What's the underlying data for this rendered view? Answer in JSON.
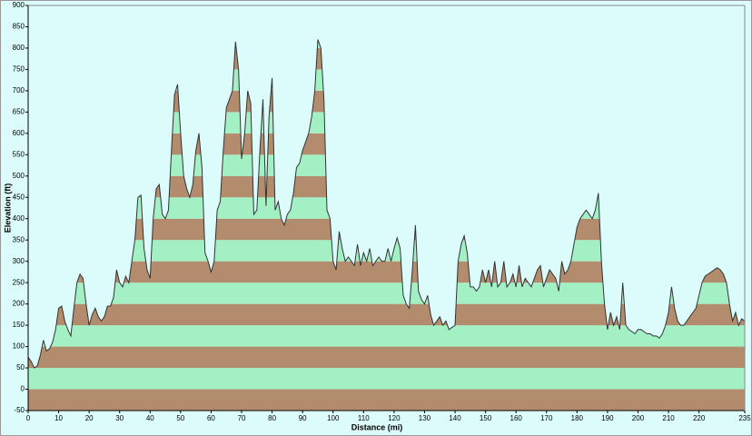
{
  "chart_data": {
    "type": "area",
    "x_label": "Distance  (mi)",
    "y_label": "Elevation (ft)",
    "x": [
      0,
      1,
      2,
      3,
      4,
      5,
      6,
      7,
      8,
      9,
      10,
      11,
      12,
      13,
      14,
      15,
      16,
      17,
      18,
      19,
      20,
      21,
      22,
      23,
      24,
      25,
      26,
      27,
      28,
      29,
      30,
      31,
      32,
      33,
      34,
      35,
      36,
      37,
      38,
      39,
      40,
      41,
      42,
      43,
      44,
      45,
      46,
      47,
      48,
      49,
      50,
      51,
      52,
      53,
      54,
      55,
      56,
      57,
      58,
      59,
      60,
      61,
      62,
      63,
      64,
      65,
      66,
      67,
      68,
      69,
      70,
      71,
      72,
      73,
      74,
      75,
      76,
      77,
      78,
      79,
      80,
      81,
      82,
      83,
      84,
      85,
      86,
      87,
      88,
      89,
      90,
      91,
      92,
      93,
      94,
      95,
      96,
      97,
      98,
      99,
      100,
      101,
      102,
      103,
      104,
      105,
      106,
      107,
      108,
      109,
      110,
      111,
      112,
      113,
      114,
      115,
      116,
      117,
      118,
      119,
      120,
      121,
      122,
      123,
      124,
      125,
      126,
      127,
      128,
      129,
      130,
      131,
      132,
      133,
      134,
      135,
      136,
      137,
      138,
      139,
      140,
      141,
      142,
      143,
      144,
      145,
      146,
      147,
      148,
      149,
      150,
      151,
      152,
      153,
      154,
      155,
      156,
      157,
      158,
      159,
      160,
      161,
      162,
      163,
      164,
      165,
      166,
      167,
      168,
      169,
      170,
      171,
      172,
      173,
      174,
      175,
      176,
      177,
      178,
      179,
      180,
      181,
      182,
      183,
      184,
      185,
      186,
      187,
      188,
      189,
      190,
      191,
      192,
      193,
      194,
      195,
      196,
      197,
      198,
      199,
      200,
      201,
      202,
      203,
      204,
      205,
      206,
      207,
      208,
      209,
      210,
      211,
      212,
      213,
      214,
      215,
      216,
      217,
      218,
      219,
      220,
      221,
      222,
      223,
      224,
      225,
      226,
      227,
      228,
      229,
      230,
      231,
      232,
      233,
      234,
      235
    ],
    "values": [
      75,
      65,
      50,
      55,
      80,
      115,
      90,
      95,
      110,
      140,
      190,
      195,
      160,
      140,
      125,
      190,
      250,
      270,
      260,
      200,
      150,
      175,
      190,
      170,
      160,
      170,
      195,
      195,
      215,
      280,
      250,
      240,
      265,
      250,
      300,
      350,
      450,
      455,
      330,
      280,
      260,
      400,
      470,
      480,
      410,
      400,
      420,
      560,
      690,
      715,
      600,
      500,
      470,
      450,
      480,
      560,
      600,
      520,
      320,
      300,
      275,
      300,
      420,
      440,
      560,
      660,
      680,
      700,
      815,
      750,
      540,
      600,
      700,
      670,
      410,
      420,
      560,
      680,
      430,
      640,
      730,
      420,
      440,
      400,
      385,
      410,
      420,
      460,
      520,
      530,
      560,
      580,
      600,
      640,
      700,
      820,
      800,
      680,
      420,
      400,
      300,
      280,
      370,
      330,
      300,
      310,
      300,
      290,
      340,
      290,
      320,
      300,
      330,
      290,
      300,
      310,
      300,
      300,
      330,
      300,
      330,
      355,
      330,
      220,
      200,
      190,
      280,
      385,
      230,
      210,
      200,
      220,
      175,
      150,
      160,
      170,
      150,
      160,
      140,
      145,
      150,
      300,
      340,
      360,
      320,
      240,
      240,
      230,
      240,
      280,
      250,
      280,
      240,
      300,
      240,
      250,
      300,
      240,
      250,
      270,
      240,
      290,
      240,
      260,
      250,
      240,
      260,
      280,
      290,
      240,
      260,
      280,
      270,
      260,
      230,
      300,
      270,
      280,
      300,
      340,
      380,
      400,
      410,
      420,
      410,
      400,
      420,
      460,
      300,
      200,
      140,
      180,
      150,
      170,
      140,
      250,
      150,
      140,
      135,
      130,
      140,
      140,
      135,
      130,
      130,
      125,
      125,
      120,
      130,
      150,
      180,
      240,
      190,
      160,
      150,
      150,
      160,
      170,
      180,
      190,
      220,
      250,
      265,
      270,
      275,
      280,
      285,
      280,
      270,
      250,
      200,
      160,
      180,
      150,
      165,
      160
    ],
    "xlim": [
      0,
      235
    ],
    "xticks": [
      0,
      10,
      20,
      30,
      40,
      50,
      60,
      70,
      80,
      90,
      100,
      110,
      120,
      130,
      140,
      150,
      160,
      170,
      180,
      190,
      200,
      210,
      220,
      235
    ],
    "ylim": [
      -50,
      900
    ],
    "yticks": [
      -50,
      0,
      50,
      100,
      150,
      200,
      250,
      300,
      350,
      400,
      450,
      500,
      550,
      600,
      650,
      700,
      750,
      800,
      850,
      900
    ],
    "band_colors": [
      "#b38b6d",
      "#a3f0c4"
    ],
    "line_color": "#333333",
    "background": "#dcfcfc"
  }
}
